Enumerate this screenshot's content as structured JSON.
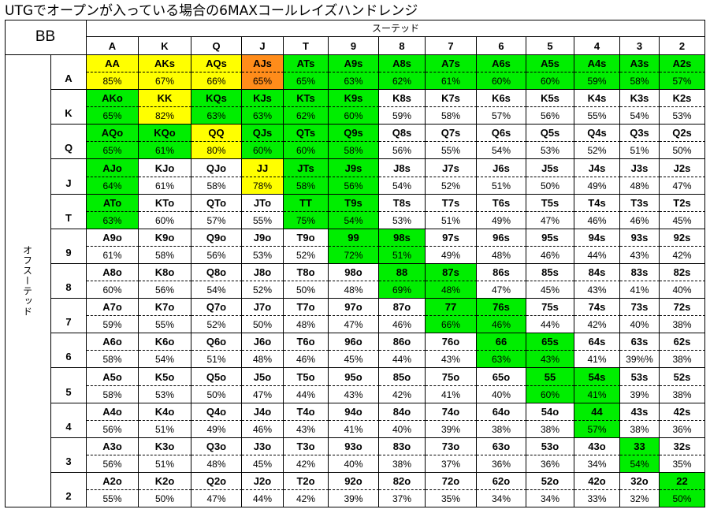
{
  "title": "UTGでオープンが入っている場合の6MAXコールレイズハンドレンジ",
  "corner_label": "BB",
  "column_group_label": "スーテッド",
  "row_group_label": "オフスーテッド",
  "ranks": [
    "A",
    "K",
    "Q",
    "J",
    "T",
    "9",
    "8",
    "7",
    "6",
    "5",
    "4",
    "3",
    "2"
  ],
  "colors": {
    "yellow": "#ffff00",
    "green": "#00ee00",
    "orange": "#ff8c1a",
    "white": "#ffffff",
    "border": "#000000"
  },
  "rows": [
    {
      "rank": "A",
      "cells": [
        {
          "hand": "AA",
          "pct": "85%",
          "color": "yellow"
        },
        {
          "hand": "AKs",
          "pct": "67%",
          "color": "yellow"
        },
        {
          "hand": "AQs",
          "pct": "66%",
          "color": "yellow"
        },
        {
          "hand": "AJs",
          "pct": "65%",
          "color": "orange"
        },
        {
          "hand": "ATs",
          "pct": "65%",
          "color": "green"
        },
        {
          "hand": "A9s",
          "pct": "63%",
          "color": "green"
        },
        {
          "hand": "A8s",
          "pct": "62%",
          "color": "green"
        },
        {
          "hand": "A7s",
          "pct": "61%",
          "color": "green"
        },
        {
          "hand": "A6s",
          "pct": "60%",
          "color": "green"
        },
        {
          "hand": "A5s",
          "pct": "60%",
          "color": "green"
        },
        {
          "hand": "A4s",
          "pct": "59%",
          "color": "green"
        },
        {
          "hand": "A3s",
          "pct": "58%",
          "color": "green"
        },
        {
          "hand": "A2s",
          "pct": "57%",
          "color": "green"
        }
      ]
    },
    {
      "rank": "K",
      "cells": [
        {
          "hand": "AKo",
          "pct": "65%",
          "color": "green"
        },
        {
          "hand": "KK",
          "pct": "82%",
          "color": "yellow"
        },
        {
          "hand": "KQs",
          "pct": "63%",
          "color": "green"
        },
        {
          "hand": "KJs",
          "pct": "63%",
          "color": "green"
        },
        {
          "hand": "KTs",
          "pct": "62%",
          "color": "green"
        },
        {
          "hand": "K9s",
          "pct": "60%",
          "color": "green"
        },
        {
          "hand": "K8s",
          "pct": "59%",
          "color": "white"
        },
        {
          "hand": "K7s",
          "pct": "58%",
          "color": "white"
        },
        {
          "hand": "K6s",
          "pct": "57%",
          "color": "white"
        },
        {
          "hand": "K5s",
          "pct": "56%",
          "color": "white"
        },
        {
          "hand": "K4s",
          "pct": "55%",
          "color": "white"
        },
        {
          "hand": "K3s",
          "pct": "54%",
          "color": "white"
        },
        {
          "hand": "K2s",
          "pct": "53%",
          "color": "white"
        }
      ]
    },
    {
      "rank": "Q",
      "cells": [
        {
          "hand": "AQo",
          "pct": "65%",
          "color": "green"
        },
        {
          "hand": "KQo",
          "pct": "61%",
          "color": "green"
        },
        {
          "hand": "QQ",
          "pct": "80%",
          "color": "yellow"
        },
        {
          "hand": "QJs",
          "pct": "60%",
          "color": "green"
        },
        {
          "hand": "QTs",
          "pct": "60%",
          "color": "green"
        },
        {
          "hand": "Q9s",
          "pct": "58%",
          "color": "green"
        },
        {
          "hand": "Q8s",
          "pct": "56%",
          "color": "white"
        },
        {
          "hand": "Q7s",
          "pct": "55%",
          "color": "white"
        },
        {
          "hand": "Q6s",
          "pct": "54%",
          "color": "white"
        },
        {
          "hand": "Q5s",
          "pct": "53%",
          "color": "white"
        },
        {
          "hand": "Q4s",
          "pct": "52%",
          "color": "white"
        },
        {
          "hand": "Q3s",
          "pct": "51%",
          "color": "white"
        },
        {
          "hand": "Q2s",
          "pct": "50%",
          "color": "white"
        }
      ]
    },
    {
      "rank": "J",
      "cells": [
        {
          "hand": "AJo",
          "pct": "64%",
          "color": "green"
        },
        {
          "hand": "KJo",
          "pct": "61%",
          "color": "white"
        },
        {
          "hand": "QJo",
          "pct": "58%",
          "color": "white"
        },
        {
          "hand": "JJ",
          "pct": "78%",
          "color": "yellow"
        },
        {
          "hand": "JTs",
          "pct": "58%",
          "color": "green"
        },
        {
          "hand": "J9s",
          "pct": "56%",
          "color": "green"
        },
        {
          "hand": "J8s",
          "pct": "54%",
          "color": "white"
        },
        {
          "hand": "J7s",
          "pct": "52%",
          "color": "white"
        },
        {
          "hand": "J6s",
          "pct": "51%",
          "color": "white"
        },
        {
          "hand": "J5s",
          "pct": "50%",
          "color": "white"
        },
        {
          "hand": "J4s",
          "pct": "49%",
          "color": "white"
        },
        {
          "hand": "J3s",
          "pct": "48%",
          "color": "white"
        },
        {
          "hand": "J2s",
          "pct": "47%",
          "color": "white"
        }
      ]
    },
    {
      "rank": "T",
      "cells": [
        {
          "hand": "ATo",
          "pct": "63%",
          "color": "green"
        },
        {
          "hand": "KTo",
          "pct": "60%",
          "color": "white"
        },
        {
          "hand": "QTo",
          "pct": "57%",
          "color": "white"
        },
        {
          "hand": "JTo",
          "pct": "55%",
          "color": "white"
        },
        {
          "hand": "TT",
          "pct": "75%",
          "color": "green"
        },
        {
          "hand": "T9s",
          "pct": "54%",
          "color": "green"
        },
        {
          "hand": "T8s",
          "pct": "53%",
          "color": "white"
        },
        {
          "hand": "T7s",
          "pct": "51%",
          "color": "white"
        },
        {
          "hand": "T6s",
          "pct": "49%",
          "color": "white"
        },
        {
          "hand": "T5s",
          "pct": "47%",
          "color": "white"
        },
        {
          "hand": "T4s",
          "pct": "46%",
          "color": "white"
        },
        {
          "hand": "T3s",
          "pct": "46%",
          "color": "white"
        },
        {
          "hand": "T2s",
          "pct": "45%",
          "color": "white"
        }
      ]
    },
    {
      "rank": "9",
      "cells": [
        {
          "hand": "A9o",
          "pct": "61%",
          "color": "white"
        },
        {
          "hand": "K9o",
          "pct": "58%",
          "color": "white"
        },
        {
          "hand": "Q9o",
          "pct": "56%",
          "color": "white"
        },
        {
          "hand": "J9o",
          "pct": "53%",
          "color": "white"
        },
        {
          "hand": "T9o",
          "pct": "52%",
          "color": "white"
        },
        {
          "hand": "99",
          "pct": "72%",
          "color": "green"
        },
        {
          "hand": "98s",
          "pct": "51%",
          "color": "green"
        },
        {
          "hand": "97s",
          "pct": "49%",
          "color": "white"
        },
        {
          "hand": "96s",
          "pct": "48%",
          "color": "white"
        },
        {
          "hand": "95s",
          "pct": "46%",
          "color": "white"
        },
        {
          "hand": "94s",
          "pct": "44%",
          "color": "white"
        },
        {
          "hand": "93s",
          "pct": "43%",
          "color": "white"
        },
        {
          "hand": "92s",
          "pct": "42%",
          "color": "white"
        }
      ]
    },
    {
      "rank": "8",
      "cells": [
        {
          "hand": "A8o",
          "pct": "60%",
          "color": "white"
        },
        {
          "hand": "K8o",
          "pct": "56%",
          "color": "white"
        },
        {
          "hand": "Q8o",
          "pct": "54%",
          "color": "white"
        },
        {
          "hand": "J8o",
          "pct": "52%",
          "color": "white"
        },
        {
          "hand": "T8o",
          "pct": "50%",
          "color": "white"
        },
        {
          "hand": "98o",
          "pct": "48%",
          "color": "white"
        },
        {
          "hand": "88",
          "pct": "69%",
          "color": "green"
        },
        {
          "hand": "87s",
          "pct": "48%",
          "color": "green"
        },
        {
          "hand": "86s",
          "pct": "47%",
          "color": "white"
        },
        {
          "hand": "85s",
          "pct": "45%",
          "color": "white"
        },
        {
          "hand": "84s",
          "pct": "43%",
          "color": "white"
        },
        {
          "hand": "83s",
          "pct": "41%",
          "color": "white"
        },
        {
          "hand": "82s",
          "pct": "40%",
          "color": "white"
        }
      ]
    },
    {
      "rank": "7",
      "cells": [
        {
          "hand": "A7o",
          "pct": "59%",
          "color": "white"
        },
        {
          "hand": "K7o",
          "pct": "55%",
          "color": "white"
        },
        {
          "hand": "Q7o",
          "pct": "52%",
          "color": "white"
        },
        {
          "hand": "J7o",
          "pct": "50%",
          "color": "white"
        },
        {
          "hand": "T7o",
          "pct": "48%",
          "color": "white"
        },
        {
          "hand": "97o",
          "pct": "47%",
          "color": "white"
        },
        {
          "hand": "87o",
          "pct": "46%",
          "color": "white"
        },
        {
          "hand": "77",
          "pct": "66%",
          "color": "green"
        },
        {
          "hand": "76s",
          "pct": "46%",
          "color": "green"
        },
        {
          "hand": "75s",
          "pct": "44%",
          "color": "white"
        },
        {
          "hand": "74s",
          "pct": "42%",
          "color": "white"
        },
        {
          "hand": "73s",
          "pct": "40%",
          "color": "white"
        },
        {
          "hand": "72s",
          "pct": "38%",
          "color": "white"
        }
      ]
    },
    {
      "rank": "6",
      "cells": [
        {
          "hand": "A6o",
          "pct": "58%",
          "color": "white"
        },
        {
          "hand": "K6o",
          "pct": "54%",
          "color": "white"
        },
        {
          "hand": "Q6o",
          "pct": "51%",
          "color": "white"
        },
        {
          "hand": "J6o",
          "pct": "48%",
          "color": "white"
        },
        {
          "hand": "T6o",
          "pct": "46%",
          "color": "white"
        },
        {
          "hand": "96o",
          "pct": "45%",
          "color": "white"
        },
        {
          "hand": "86o",
          "pct": "44%",
          "color": "white"
        },
        {
          "hand": "76o",
          "pct": "43%",
          "color": "white"
        },
        {
          "hand": "66",
          "pct": "63%",
          "color": "green"
        },
        {
          "hand": "65s",
          "pct": "43%",
          "color": "green"
        },
        {
          "hand": "64s",
          "pct": "41%",
          "color": "white"
        },
        {
          "hand": "63s",
          "pct": "39%%",
          "color": "white"
        },
        {
          "hand": "62s",
          "pct": "38%",
          "color": "white"
        }
      ]
    },
    {
      "rank": "5",
      "cells": [
        {
          "hand": "A5o",
          "pct": "58%",
          "color": "white"
        },
        {
          "hand": "K5o",
          "pct": "53%",
          "color": "white"
        },
        {
          "hand": "Q5o",
          "pct": "50%",
          "color": "white"
        },
        {
          "hand": "J5o",
          "pct": "47%",
          "color": "white"
        },
        {
          "hand": "T5o",
          "pct": "44%",
          "color": "white"
        },
        {
          "hand": "95o",
          "pct": "43%",
          "color": "white"
        },
        {
          "hand": "85o",
          "pct": "42%",
          "color": "white"
        },
        {
          "hand": "75o",
          "pct": "41%",
          "color": "white"
        },
        {
          "hand": "65o",
          "pct": "40%",
          "color": "white"
        },
        {
          "hand": "55",
          "pct": "60%",
          "color": "green"
        },
        {
          "hand": "54s",
          "pct": "41%",
          "color": "green"
        },
        {
          "hand": "53s",
          "pct": "39%",
          "color": "white"
        },
        {
          "hand": "52s",
          "pct": "38%",
          "color": "white"
        }
      ]
    },
    {
      "rank": "4",
      "cells": [
        {
          "hand": "A4o",
          "pct": "56%",
          "color": "white"
        },
        {
          "hand": "K4o",
          "pct": "51%",
          "color": "white"
        },
        {
          "hand": "Q4o",
          "pct": "49%",
          "color": "white"
        },
        {
          "hand": "J4o",
          "pct": "46%",
          "color": "white"
        },
        {
          "hand": "T4o",
          "pct": "43%",
          "color": "white"
        },
        {
          "hand": "94o",
          "pct": "41%",
          "color": "white"
        },
        {
          "hand": "84o",
          "pct": "40%",
          "color": "white"
        },
        {
          "hand": "74o",
          "pct": "39%",
          "color": "white"
        },
        {
          "hand": "64o",
          "pct": "38%",
          "color": "white"
        },
        {
          "hand": "54o",
          "pct": "38%",
          "color": "white"
        },
        {
          "hand": "44",
          "pct": "57%",
          "color": "green"
        },
        {
          "hand": "43s",
          "pct": "38%",
          "color": "white"
        },
        {
          "hand": "42s",
          "pct": "36%",
          "color": "white"
        }
      ]
    },
    {
      "rank": "3",
      "cells": [
        {
          "hand": "A3o",
          "pct": "56%",
          "color": "white"
        },
        {
          "hand": "K3o",
          "pct": "51%",
          "color": "white"
        },
        {
          "hand": "Q3o",
          "pct": "48%",
          "color": "white"
        },
        {
          "hand": "J3o",
          "pct": "45%",
          "color": "white"
        },
        {
          "hand": "T3o",
          "pct": "42%",
          "color": "white"
        },
        {
          "hand": "93o",
          "pct": "40%",
          "color": "white"
        },
        {
          "hand": "83o",
          "pct": "38%",
          "color": "white"
        },
        {
          "hand": "73o",
          "pct": "37%",
          "color": "white"
        },
        {
          "hand": "63o",
          "pct": "36%",
          "color": "white"
        },
        {
          "hand": "53o",
          "pct": "36%",
          "color": "white"
        },
        {
          "hand": "43o",
          "pct": "34%",
          "color": "white"
        },
        {
          "hand": "33",
          "pct": "54%",
          "color": "green"
        },
        {
          "hand": "32s",
          "pct": "35%",
          "color": "white"
        }
      ]
    },
    {
      "rank": "2",
      "cells": [
        {
          "hand": "A2o",
          "pct": "55%",
          "color": "white"
        },
        {
          "hand": "K2o",
          "pct": "50%",
          "color": "white"
        },
        {
          "hand": "Q2o",
          "pct": "47%",
          "color": "white"
        },
        {
          "hand": "J2o",
          "pct": "44%",
          "color": "white"
        },
        {
          "hand": "T2o",
          "pct": "42%",
          "color": "white"
        },
        {
          "hand": "92o",
          "pct": "39%",
          "color": "white"
        },
        {
          "hand": "82o",
          "pct": "37%",
          "color": "white"
        },
        {
          "hand": "72o",
          "pct": "35%",
          "color": "white"
        },
        {
          "hand": "62o",
          "pct": "34%",
          "color": "white"
        },
        {
          "hand": "52o",
          "pct": "34%",
          "color": "white"
        },
        {
          "hand": "42o",
          "pct": "33%",
          "color": "white"
        },
        {
          "hand": "32o",
          "pct": "32%",
          "color": "white"
        },
        {
          "hand": "22",
          "pct": "50%",
          "color": "green"
        }
      ]
    }
  ]
}
